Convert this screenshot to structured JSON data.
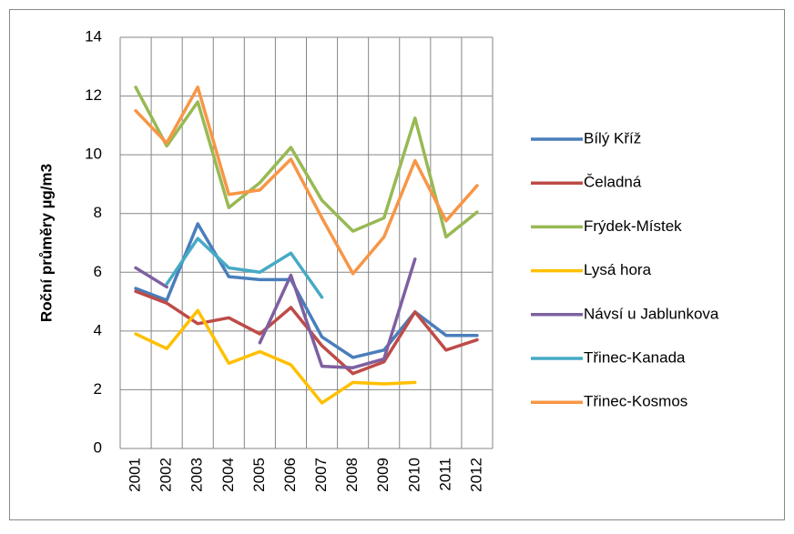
{
  "chart_data": {
    "type": "line",
    "y_label": "Roční průměry µg/m3",
    "categories": [
      "2001",
      "2002",
      "2003",
      "2004",
      "2005",
      "2006",
      "2007",
      "2008",
      "2009",
      "2010",
      "2011",
      "2012"
    ],
    "series": [
      {
        "name": "Bílý Kříž",
        "color": "#4a7ebb",
        "values": [
          5.45,
          5.05,
          7.65,
          5.85,
          5.75,
          5.75,
          3.8,
          3.1,
          3.35,
          4.65,
          3.85,
          3.85
        ]
      },
      {
        "name": "Čeladná",
        "color": "#be4b48",
        "values": [
          5.35,
          4.95,
          4.25,
          4.45,
          3.9,
          4.8,
          3.5,
          2.55,
          2.95,
          4.65,
          3.35,
          3.7
        ]
      },
      {
        "name": "Frýdek-Místek",
        "color": "#98b954",
        "values": [
          12.3,
          10.3,
          11.8,
          8.2,
          9.05,
          10.25,
          8.45,
          7.4,
          7.85,
          11.25,
          7.2,
          8.05
        ]
      },
      {
        "name": "Lysá hora",
        "color": "#ffc000",
        "values": [
          3.9,
          3.4,
          4.7,
          2.9,
          3.3,
          2.85,
          1.55,
          2.25,
          2.2,
          2.25,
          null,
          null
        ]
      },
      {
        "name": "Návsí u Jablunkova",
        "color": "#7d60a0",
        "values": [
          6.15,
          5.5,
          null,
          null,
          3.6,
          5.9,
          2.8,
          2.75,
          3.05,
          6.45,
          null,
          null
        ]
      },
      {
        "name": "Třinec-Kanada",
        "color": "#46aac5",
        "values": [
          null,
          5.6,
          7.15,
          6.15,
          6.0,
          6.65,
          5.15,
          null,
          null,
          null,
          null,
          null
        ]
      },
      {
        "name": "Třinec-Kosmos",
        "color": "#f79646",
        "values": [
          11.5,
          10.4,
          12.3,
          8.65,
          8.8,
          9.85,
          7.85,
          5.95,
          7.2,
          9.8,
          7.75,
          8.95
        ]
      }
    ],
    "ylim": [
      0,
      14
    ],
    "yticks": [
      0,
      2,
      4,
      6,
      8,
      10,
      12,
      14
    ],
    "grid": true,
    "legend": "right"
  }
}
